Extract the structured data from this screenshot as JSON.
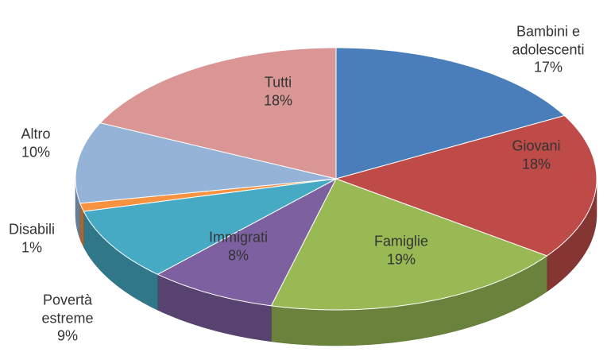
{
  "chart_data": {
    "type": "pie3d",
    "categories": [
      "Bambini e adolescenti",
      "Giovani",
      "Famiglie",
      "Immigrati",
      "Povertà estreme",
      "Disabili",
      "Altro",
      "Tutti"
    ],
    "values": [
      17,
      18,
      19,
      8,
      9,
      1,
      10,
      18
    ],
    "value_labels": [
      "17%",
      "18%",
      "19%",
      "8%",
      "9%",
      "1%",
      "10%",
      "18%"
    ],
    "colors": [
      "#4a7ebb",
      "#be4b48",
      "#98b954",
      "#7d60a0",
      "#46aac5",
      "#f69240",
      "#95b3d7",
      "#d99694"
    ]
  }
}
